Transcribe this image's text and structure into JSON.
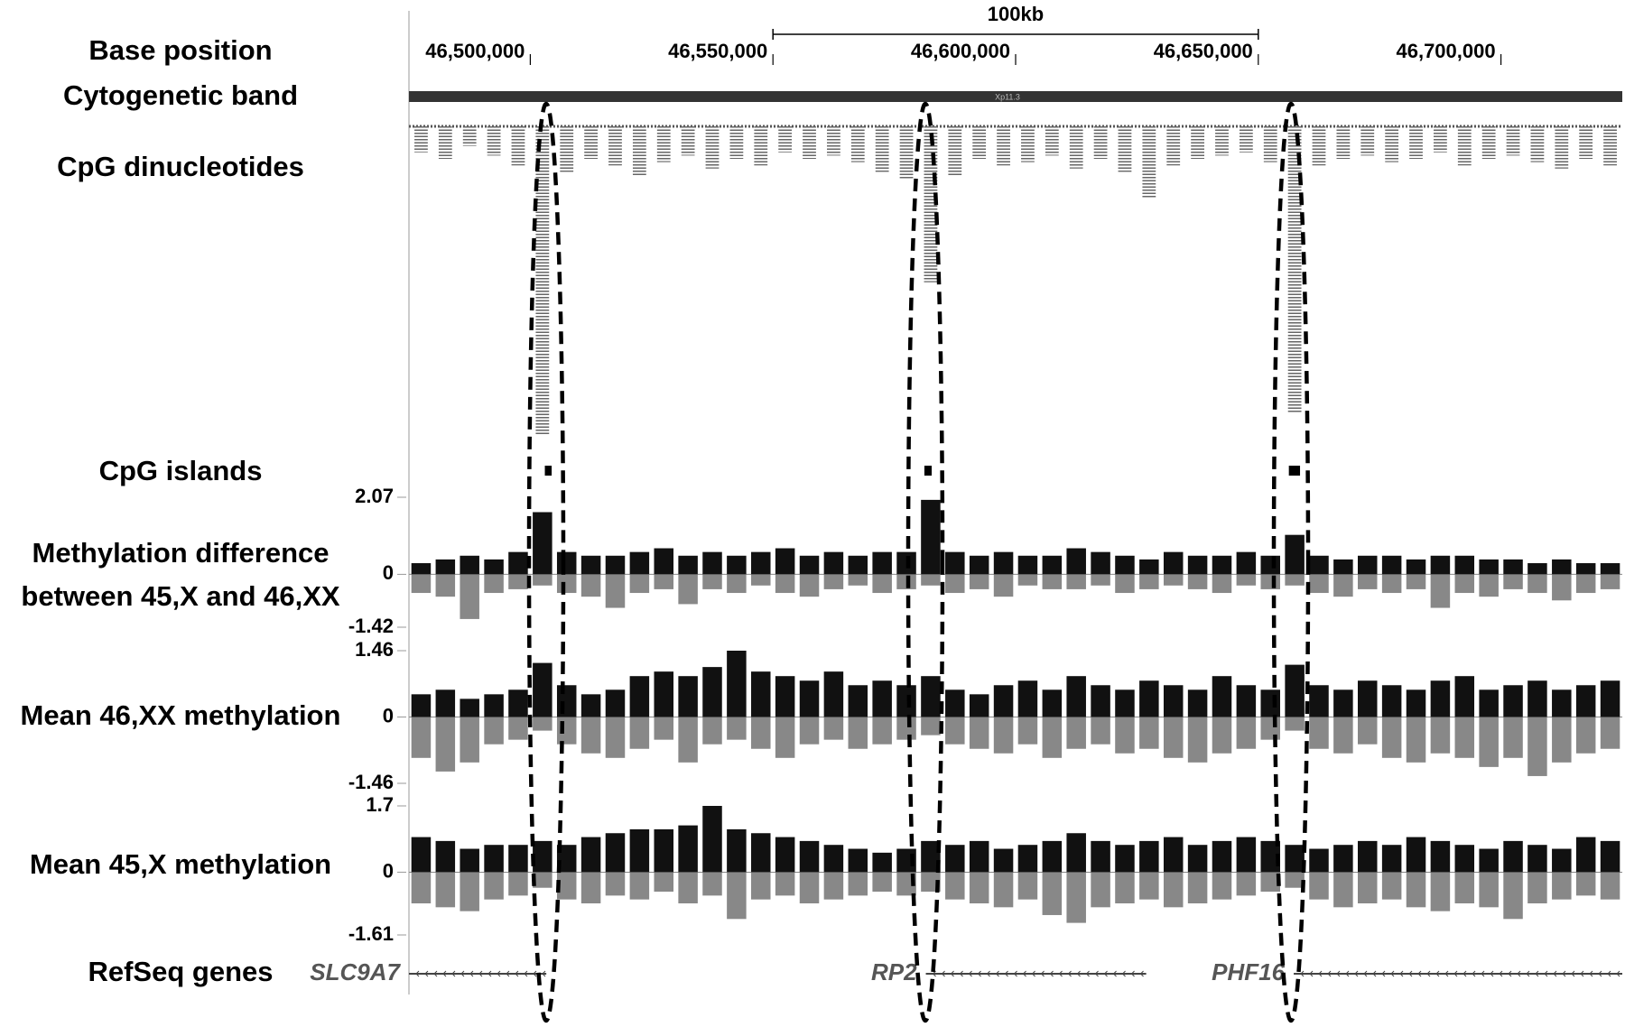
{
  "chart_data": {
    "type": "genome-browser",
    "xlim": [
      46475000,
      46725000
    ],
    "xticks": [
      {
        "value": 46500000,
        "label": "46,500,000"
      },
      {
        "value": 46550000,
        "label": "46,550,000"
      },
      {
        "value": 46600000,
        "label": "46,600,000"
      },
      {
        "value": 46650000,
        "label": "46,650,000"
      },
      {
        "value": 46700000,
        "label": "46,700,000"
      }
    ],
    "x_axis_label": "Base position",
    "scale_bar": {
      "label": "100kb",
      "start": 46550000,
      "end": 46650000
    },
    "cytoband": {
      "label": "Cytogenetic band",
      "name": "Xp11.3"
    },
    "x": [
      46477500,
      46482500,
      46487500,
      46492500,
      46497500,
      46502500,
      46507500,
      46512500,
      46517500,
      46522500,
      46527500,
      46532500,
      46537500,
      46542500,
      46547500,
      46552500,
      46557500,
      46562500,
      46567500,
      46572500,
      46577500,
      46582500,
      46587500,
      46592500,
      46597500,
      46602500,
      46607500,
      46612500,
      46617500,
      46622500,
      46627500,
      46632500,
      46637500,
      46642500,
      46647500,
      46652500,
      46657500,
      46662500,
      46667500,
      46672500,
      46677500,
      46682500,
      46687500,
      46692500,
      46697500,
      46702500,
      46707500,
      46712500,
      46717500,
      46722500
    ],
    "cpg_dinucleotides": {
      "label": "CpG dinucleotides",
      "counts": [
        8,
        10,
        6,
        9,
        12,
        95,
        14,
        10,
        12,
        15,
        11,
        9,
        13,
        10,
        12,
        8,
        10,
        9,
        11,
        14,
        16,
        48,
        15,
        10,
        12,
        11,
        9,
        13,
        10,
        14,
        22,
        12,
        10,
        9,
        8,
        11,
        88,
        12,
        10,
        9,
        11,
        10,
        8,
        12,
        10,
        9,
        11,
        13,
        10,
        12
      ]
    },
    "cpg_islands": {
      "label": "CpG islands",
      "starts": [
        46503000,
        46581200,
        46656300
      ],
      "ends": [
        46504400,
        46582700,
        46658600
      ]
    },
    "signal_tracks": [
      {
        "label_lines": [
          "Methylation difference",
          "between 45,X and 46,XX"
        ],
        "ylim": [
          -1.42,
          2.07
        ],
        "yticks": [
          -1.42,
          0,
          2.07
        ],
        "values_above": [
          0.3,
          0.4,
          0.5,
          0.4,
          0.6,
          1.67,
          0.6,
          0.5,
          0.5,
          0.6,
          0.7,
          0.5,
          0.6,
          0.5,
          0.6,
          0.7,
          0.5,
          0.6,
          0.5,
          0.6,
          0.6,
          2.0,
          0.6,
          0.5,
          0.6,
          0.5,
          0.5,
          0.7,
          0.6,
          0.5,
          0.4,
          0.6,
          0.5,
          0.5,
          0.6,
          0.5,
          1.06,
          0.5,
          0.4,
          0.5,
          0.5,
          0.4,
          0.5,
          0.5,
          0.4,
          0.4,
          0.3,
          0.4,
          0.3,
          0.3
        ],
        "values_below": [
          -0.5,
          -0.6,
          -1.2,
          -0.5,
          -0.4,
          -0.3,
          -0.5,
          -0.6,
          -0.9,
          -0.5,
          -0.4,
          -0.8,
          -0.4,
          -0.5,
          -0.3,
          -0.5,
          -0.6,
          -0.4,
          -0.3,
          -0.5,
          -0.4,
          -0.3,
          -0.5,
          -0.4,
          -0.6,
          -0.3,
          -0.4,
          -0.4,
          -0.3,
          -0.5,
          -0.4,
          -0.3,
          -0.4,
          -0.5,
          -0.3,
          -0.4,
          -0.3,
          -0.5,
          -0.6,
          -0.4,
          -0.5,
          -0.4,
          -0.9,
          -0.5,
          -0.6,
          -0.4,
          -0.5,
          -0.7,
          -0.5,
          -0.4
        ]
      },
      {
        "label_lines": [
          "Mean 46,XX methylation"
        ],
        "ylim": [
          -1.46,
          1.46
        ],
        "yticks": [
          -1.46,
          0,
          1.46
        ],
        "values_above": [
          0.5,
          0.6,
          0.4,
          0.5,
          0.6,
          1.19,
          0.7,
          0.5,
          0.6,
          0.9,
          1.0,
          0.9,
          1.1,
          1.46,
          1.0,
          0.9,
          0.8,
          1.0,
          0.7,
          0.8,
          0.7,
          0.9,
          0.6,
          0.5,
          0.7,
          0.8,
          0.6,
          0.9,
          0.7,
          0.6,
          0.8,
          0.7,
          0.6,
          0.9,
          0.7,
          0.6,
          1.15,
          0.7,
          0.6,
          0.8,
          0.7,
          0.6,
          0.8,
          0.9,
          0.6,
          0.7,
          0.8,
          0.6,
          0.7,
          0.8
        ],
        "values_below": [
          -0.9,
          -1.2,
          -1.0,
          -0.6,
          -0.5,
          -0.3,
          -0.6,
          -0.8,
          -0.9,
          -0.7,
          -0.5,
          -1.0,
          -0.6,
          -0.5,
          -0.7,
          -0.9,
          -0.6,
          -0.5,
          -0.7,
          -0.6,
          -0.5,
          -0.4,
          -0.6,
          -0.7,
          -0.8,
          -0.6,
          -0.9,
          -0.7,
          -0.6,
          -0.8,
          -0.7,
          -0.9,
          -1.0,
          -0.8,
          -0.7,
          -0.5,
          -0.3,
          -0.7,
          -0.8,
          -0.6,
          -0.9,
          -1.0,
          -0.8,
          -0.9,
          -1.1,
          -0.9,
          -1.3,
          -1.0,
          -0.8,
          -0.7
        ]
      },
      {
        "label_lines": [
          "Mean 45,X methylation"
        ],
        "ylim": [
          -1.61,
          1.7
        ],
        "yticks": [
          -1.61,
          0,
          1.7
        ],
        "values_above": [
          0.9,
          0.8,
          0.6,
          0.7,
          0.7,
          0.8,
          0.7,
          0.9,
          1.0,
          1.1,
          1.1,
          1.2,
          1.7,
          1.1,
          1.0,
          0.9,
          0.8,
          0.7,
          0.6,
          0.5,
          0.6,
          0.8,
          0.7,
          0.8,
          0.6,
          0.7,
          0.8,
          1.0,
          0.8,
          0.7,
          0.8,
          0.9,
          0.7,
          0.8,
          0.9,
          0.8,
          0.7,
          0.6,
          0.7,
          0.8,
          0.7,
          0.9,
          0.8,
          0.7,
          0.6,
          0.8,
          0.7,
          0.6,
          0.9,
          0.8
        ],
        "values_below": [
          -0.8,
          -0.9,
          -1.0,
          -0.7,
          -0.6,
          -0.4,
          -0.7,
          -0.8,
          -0.6,
          -0.7,
          -0.5,
          -0.8,
          -0.6,
          -1.2,
          -0.7,
          -0.6,
          -0.8,
          -0.7,
          -0.6,
          -0.5,
          -0.6,
          -0.5,
          -0.7,
          -0.8,
          -0.9,
          -0.7,
          -1.1,
          -1.3,
          -0.9,
          -0.8,
          -0.7,
          -0.9,
          -0.8,
          -0.7,
          -0.6,
          -0.5,
          -0.4,
          -0.7,
          -0.9,
          -0.8,
          -0.7,
          -0.9,
          -1.0,
          -0.8,
          -0.9,
          -1.2,
          -0.8,
          -0.7,
          -0.6,
          -0.7
        ]
      }
    ],
    "genes": {
      "label": "RefSeq genes",
      "items": [
        {
          "name": "SLC9A7",
          "start": 46475000,
          "end": 46503300
        },
        {
          "name": "RP2",
          "start": 46581500,
          "end": 46626900
        },
        {
          "name": "PHF16",
          "start": 46657300,
          "end": 46725000
        }
      ]
    }
  }
}
